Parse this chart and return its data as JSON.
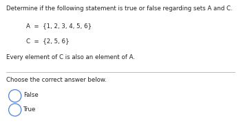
{
  "background_color": "#ffffff",
  "title_line": "Determine if the following statement is true or false regarding sets A and C.",
  "set_A": "A  =  {1, 2, 3, 4, 5, 6}",
  "set_C": "C  =  {2, 5, 6}",
  "statement": "Every element of C is also an element of A.",
  "choose_label": "Choose the correct answer below.",
  "option1": "False",
  "option2": "True",
  "text_color": "#222222",
  "circle_color": "#5b8dd9",
  "divider_color": "#bbbbbb",
  "font_size_title": 6.2,
  "font_size_sets": 6.2,
  "font_size_statement": 6.2,
  "font_size_choose": 6.2,
  "font_size_options": 6.2
}
